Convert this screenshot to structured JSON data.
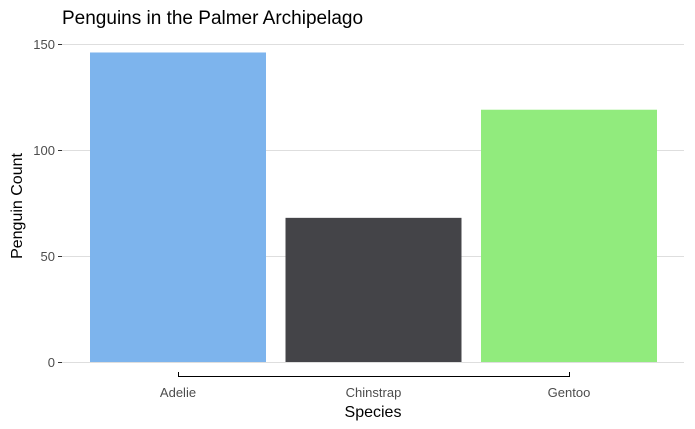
{
  "chart_data": {
    "type": "bar",
    "title": "Penguins in the Palmer Archipelago",
    "xlabel": "Species",
    "ylabel": "Penguin Count",
    "categories": [
      "Adelie",
      "Chinstrap",
      "Gentoo"
    ],
    "values": [
      146,
      68,
      119
    ],
    "colors": [
      "#7db4ed",
      "#444448",
      "#91eb7d"
    ],
    "ylim": [
      0,
      150
    ],
    "yticks": [
      0,
      50,
      100,
      150
    ],
    "grid": "horizontal",
    "legend": "none"
  }
}
